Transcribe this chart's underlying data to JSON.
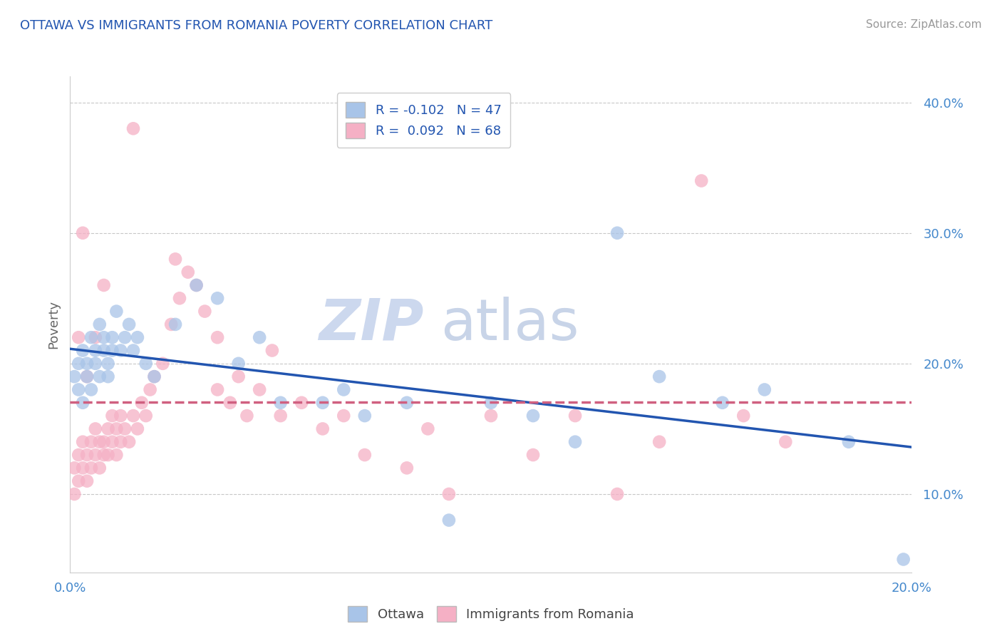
{
  "title": "OTTAWA VS IMMIGRANTS FROM ROMANIA POVERTY CORRELATION CHART",
  "source": "Source: ZipAtlas.com",
  "ylabel": "Poverty",
  "xlim": [
    0.0,
    0.2
  ],
  "ylim": [
    0.04,
    0.42
  ],
  "yticks": [
    0.1,
    0.2,
    0.3,
    0.4
  ],
  "ytick_labels": [
    "10.0%",
    "20.0%",
    "30.0%",
    "40.0%"
  ],
  "xticks": [
    0.0,
    0.05,
    0.1,
    0.15,
    0.2
  ],
  "xtick_labels": [
    "0.0%",
    "",
    "",
    "",
    "20.0%"
  ],
  "ottawa_R": -0.102,
  "ottawa_N": 47,
  "romania_R": 0.092,
  "romania_N": 68,
  "ottawa_color": "#a8c4e8",
  "romania_color": "#f5b0c5",
  "ottawa_line_color": "#2255b0",
  "romania_line_color": "#d06080",
  "background_color": "#ffffff",
  "grid_color": "#c8c8c8",
  "watermark_zip": "ZIP",
  "watermark_atlas": "atlas",
  "legend_labels": [
    "Ottawa",
    "Immigrants from Romania"
  ],
  "ottawa_x": [
    0.001,
    0.002,
    0.002,
    0.003,
    0.003,
    0.004,
    0.004,
    0.005,
    0.005,
    0.006,
    0.006,
    0.007,
    0.007,
    0.008,
    0.008,
    0.009,
    0.009,
    0.01,
    0.01,
    0.011,
    0.012,
    0.013,
    0.014,
    0.015,
    0.016,
    0.018,
    0.02,
    0.025,
    0.03,
    0.035,
    0.04,
    0.045,
    0.05,
    0.06,
    0.065,
    0.07,
    0.08,
    0.09,
    0.1,
    0.11,
    0.12,
    0.13,
    0.14,
    0.155,
    0.165,
    0.185,
    0.198
  ],
  "ottawa_y": [
    0.19,
    0.2,
    0.18,
    0.17,
    0.21,
    0.2,
    0.19,
    0.22,
    0.18,
    0.21,
    0.2,
    0.23,
    0.19,
    0.22,
    0.21,
    0.2,
    0.19,
    0.22,
    0.21,
    0.24,
    0.21,
    0.22,
    0.23,
    0.21,
    0.22,
    0.2,
    0.19,
    0.23,
    0.26,
    0.25,
    0.2,
    0.22,
    0.17,
    0.17,
    0.18,
    0.16,
    0.17,
    0.08,
    0.17,
    0.16,
    0.14,
    0.3,
    0.19,
    0.17,
    0.18,
    0.14,
    0.05
  ],
  "romania_x": [
    0.001,
    0.001,
    0.002,
    0.002,
    0.003,
    0.003,
    0.004,
    0.004,
    0.005,
    0.005,
    0.006,
    0.006,
    0.007,
    0.007,
    0.008,
    0.008,
    0.009,
    0.009,
    0.01,
    0.01,
    0.011,
    0.011,
    0.012,
    0.012,
    0.013,
    0.014,
    0.015,
    0.016,
    0.017,
    0.018,
    0.019,
    0.02,
    0.022,
    0.024,
    0.026,
    0.028,
    0.03,
    0.032,
    0.035,
    0.038,
    0.04,
    0.042,
    0.045,
    0.048,
    0.05,
    0.055,
    0.06,
    0.065,
    0.07,
    0.08,
    0.085,
    0.09,
    0.1,
    0.11,
    0.12,
    0.13,
    0.14,
    0.15,
    0.16,
    0.17,
    0.035,
    0.025,
    0.015,
    0.008,
    0.003,
    0.002,
    0.004,
    0.006
  ],
  "romania_y": [
    0.12,
    0.1,
    0.11,
    0.13,
    0.14,
    0.12,
    0.13,
    0.11,
    0.14,
    0.12,
    0.13,
    0.15,
    0.14,
    0.12,
    0.13,
    0.14,
    0.15,
    0.13,
    0.14,
    0.16,
    0.15,
    0.13,
    0.14,
    0.16,
    0.15,
    0.14,
    0.16,
    0.15,
    0.17,
    0.16,
    0.18,
    0.19,
    0.2,
    0.23,
    0.25,
    0.27,
    0.26,
    0.24,
    0.22,
    0.17,
    0.19,
    0.16,
    0.18,
    0.21,
    0.16,
    0.17,
    0.15,
    0.16,
    0.13,
    0.12,
    0.15,
    0.1,
    0.16,
    0.13,
    0.16,
    0.1,
    0.14,
    0.34,
    0.16,
    0.14,
    0.18,
    0.28,
    0.38,
    0.26,
    0.3,
    0.22,
    0.19,
    0.22
  ]
}
